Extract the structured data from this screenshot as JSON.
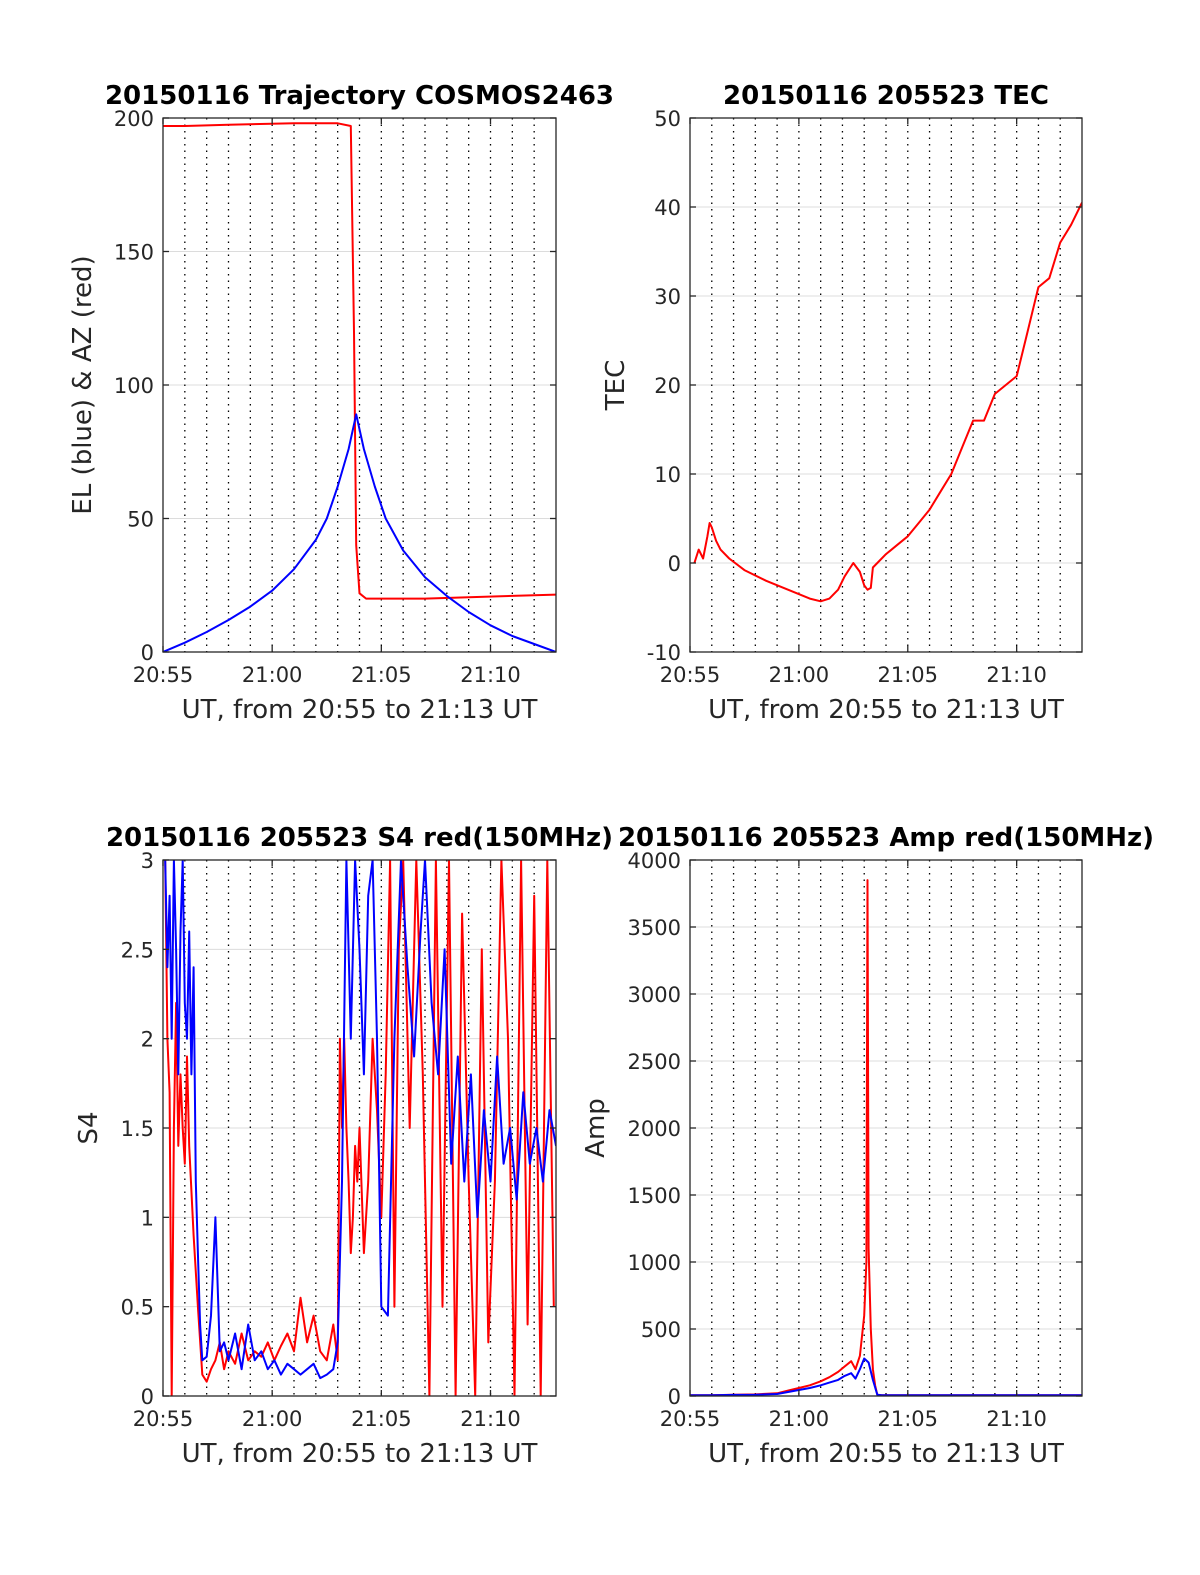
{
  "chart_data": [
    {
      "type": "line",
      "title": "20150116 Trajectory COSMOS2463",
      "xlabel": "UT, from 20:55 to 21:13 UT",
      "ylabel": "EL (blue) & AZ (red)",
      "xlim_minutes": [
        0,
        18
      ],
      "ylim": [
        0,
        200
      ],
      "xticks": [
        0,
        5,
        10,
        15
      ],
      "xtick_labels": [
        "20:55",
        "21:00",
        "21:05",
        "21:10"
      ],
      "yticks": [
        0,
        50,
        100,
        150,
        200
      ],
      "ytick_labels": [
        "0",
        "50",
        "100",
        "150",
        "200"
      ],
      "grid": "dotted vertical every minute, light horizontal at y ticks",
      "series": [
        {
          "color": "#ff0000",
          "x": [
            0,
            1,
            3,
            6,
            8,
            8.6,
            8.75,
            8.85,
            9.0,
            9.3,
            10,
            12,
            14,
            16,
            18
          ],
          "y": [
            197,
            197,
            197.5,
            198,
            198,
            197,
            120,
            40,
            22,
            20,
            20,
            20,
            20.5,
            21,
            21.5
          ]
        },
        {
          "color": "#0000ff",
          "x": [
            0,
            1,
            2,
            3,
            4,
            5,
            6,
            7,
            7.5,
            8,
            8.5,
            8.85,
            9.2,
            9.7,
            10.2,
            11,
            12,
            13,
            14,
            15,
            16,
            17,
            18
          ],
          "y": [
            0,
            3.5,
            7.5,
            12,
            17,
            23,
            31,
            42,
            50,
            62,
            76,
            89,
            76,
            62,
            50,
            38,
            28,
            21,
            15,
            10,
            6,
            3,
            0
          ]
        }
      ]
    },
    {
      "type": "line",
      "title": "20150116 205523 TEC",
      "xlabel": "UT, from 20:55 to 21:13 UT",
      "ylabel": "TEC",
      "xlim_minutes": [
        0,
        18
      ],
      "ylim": [
        -10,
        50
      ],
      "xticks": [
        0,
        5,
        10,
        15
      ],
      "xtick_labels": [
        "20:55",
        "21:00",
        "21:05",
        "21:10"
      ],
      "yticks": [
        -10,
        0,
        10,
        20,
        30,
        40,
        50
      ],
      "ytick_labels": [
        "-10",
        "0",
        "10",
        "20",
        "30",
        "40",
        "50"
      ],
      "grid": "dotted vertical every minute, light horizontal at y ticks",
      "series": [
        {
          "color": "#ff0000",
          "x": [
            0.2,
            0.4,
            0.6,
            0.8,
            0.9,
            1.0,
            1.2,
            1.4,
            1.8,
            2.5,
            3.5,
            4.5,
            5.5,
            6.0,
            6.4,
            6.8,
            7.1,
            7.5,
            7.8,
            8.0,
            8.15,
            8.3,
            8.4,
            8.6,
            9.0,
            9.5,
            10.0,
            10.5,
            11.0,
            11.5,
            12.0,
            12.5,
            13.0,
            13.5,
            14.0,
            14.5,
            15.0,
            15.5,
            16.0,
            16.5,
            17.0,
            17.5,
            18.0
          ],
          "y": [
            0,
            1.5,
            0.5,
            3,
            4.5,
            4,
            2.5,
            1.5,
            0.5,
            -0.8,
            -2,
            -3,
            -4,
            -4.3,
            -4,
            -3,
            -1.5,
            0,
            -1,
            -2.5,
            -3,
            -2.8,
            -0.5,
            0,
            1,
            2,
            3,
            4.5,
            6,
            8,
            10,
            13,
            16,
            16,
            19,
            20,
            21,
            26,
            31,
            32,
            36,
            38,
            40.5
          ]
        }
      ]
    },
    {
      "type": "line",
      "title": "20150116 205523 S4 red(150MHz)",
      "xlabel": "UT, from 20:55 to 21:13 UT",
      "ylabel": "S4",
      "xlim_minutes": [
        0,
        18
      ],
      "ylim": [
        0,
        3
      ],
      "xticks": [
        0,
        5,
        10,
        15
      ],
      "xtick_labels": [
        "20:55",
        "21:00",
        "21:05",
        "21:10"
      ],
      "yticks": [
        0,
        0.5,
        1,
        1.5,
        2,
        2.5,
        3
      ],
      "ytick_labels": [
        "0",
        "0.5",
        "1",
        "1.5",
        "2",
        "2.5",
        "3"
      ],
      "grid": "dotted vertical every minute, light horizontal at y ticks",
      "series": [
        {
          "color": "#ff0000",
          "x": [
            0.1,
            0.2,
            0.3,
            0.4,
            0.5,
            0.6,
            0.7,
            0.8,
            0.9,
            1.0,
            1.1,
            1.2,
            1.4,
            1.6,
            1.8,
            2.0,
            2.2,
            2.4,
            2.6,
            2.8,
            3.0,
            3.3,
            3.6,
            3.9,
            4.2,
            4.5,
            4.8,
            5.1,
            5.4,
            5.7,
            6.0,
            6.3,
            6.6,
            6.9,
            7.2,
            7.5,
            7.8,
            8.0,
            8.1,
            8.2,
            8.3,
            8.4,
            8.5,
            8.6,
            8.7,
            8.8,
            8.9,
            9.0,
            9.2,
            9.4,
            9.6,
            9.8,
            10.0,
            10.2,
            10.4,
            10.6,
            10.8,
            11.0,
            11.3,
            11.6,
            11.9,
            12.2,
            12.5,
            12.8,
            13.1,
            13.4,
            13.7,
            14.0,
            14.3,
            14.6,
            14.9,
            15.2,
            15.5,
            15.8,
            16.1,
            16.4,
            16.7,
            17.0,
            17.3,
            17.6,
            17.9
          ],
          "y": [
            3,
            2.0,
            1.7,
            0,
            1.5,
            2.2,
            1.4,
            1.8,
            1.5,
            1.3,
            1.9,
            1.4,
            0.9,
            0.5,
            0.12,
            0.08,
            0.15,
            0.2,
            0.3,
            0.15,
            0.25,
            0.18,
            0.35,
            0.2,
            0.25,
            0.22,
            0.3,
            0.2,
            0.28,
            0.35,
            0.25,
            0.55,
            0.3,
            0.45,
            0.25,
            0.2,
            0.4,
            0.2,
            2.0,
            1.5,
            2.0,
            1.5,
            1.2,
            0.8,
            1.0,
            1.4,
            1.2,
            1.5,
            0.8,
            1.2,
            2.0,
            1.6,
            1.0,
            1.8,
            3,
            0.5,
            2.5,
            3,
            1.5,
            3,
            1.8,
            0,
            3,
            0.5,
            3,
            0,
            2.7,
            1.2,
            0,
            2.5,
            0.3,
            1.2,
            3,
            2.0,
            0,
            3,
            0.4,
            2.8,
            0,
            3,
            0.5
          ]
        },
        {
          "color": "#0000ff",
          "x": [
            0.1,
            0.2,
            0.3,
            0.4,
            0.5,
            0.6,
            0.7,
            0.8,
            0.9,
            1.0,
            1.1,
            1.2,
            1.3,
            1.4,
            1.5,
            1.6,
            1.7,
            1.8,
            2.0,
            2.2,
            2.4,
            2.6,
            2.8,
            3.0,
            3.3,
            3.6,
            3.9,
            4.2,
            4.5,
            4.8,
            5.1,
            5.4,
            5.7,
            6.0,
            6.3,
            6.6,
            6.9,
            7.2,
            7.5,
            7.8,
            8.0,
            8.2,
            8.4,
            8.6,
            8.8,
            9.0,
            9.2,
            9.4,
            9.6,
            9.8,
            10.0,
            10.3,
            10.6,
            10.9,
            11.2,
            11.5,
            11.8,
            12.0,
            12.3,
            12.6,
            12.9,
            13.2,
            13.5,
            13.8,
            14.1,
            14.4,
            14.7,
            15.0,
            15.3,
            15.6,
            15.9,
            16.2,
            16.5,
            16.8,
            17.1,
            17.4,
            17.7,
            18.0
          ],
          "y": [
            3,
            2.4,
            2.8,
            2.0,
            3,
            2.5,
            1.8,
            2.6,
            3,
            2.2,
            2.0,
            2.6,
            1.8,
            2.4,
            1.2,
            0.8,
            0.4,
            0.2,
            0.22,
            0.45,
            1.0,
            0.25,
            0.3,
            0.2,
            0.35,
            0.15,
            0.4,
            0.2,
            0.25,
            0.15,
            0.2,
            0.12,
            0.18,
            0.15,
            0.12,
            0.15,
            0.18,
            0.1,
            0.12,
            0.15,
            0.3,
            1.2,
            3,
            2.0,
            3,
            2.5,
            1.8,
            2.8,
            3,
            2.0,
            0.5,
            0.45,
            2.0,
            3,
            2.4,
            1.9,
            2.6,
            3,
            2.2,
            1.8,
            2.5,
            1.3,
            1.9,
            1.2,
            1.8,
            1.0,
            1.6,
            1.2,
            1.9,
            1.3,
            1.5,
            1.1,
            1.7,
            1.3,
            1.5,
            1.2,
            1.6,
            1.4
          ]
        }
      ]
    },
    {
      "type": "line",
      "title": "20150116 205523 Amp red(150MHz)",
      "xlabel": "UT, from 20:55 to 21:13 UT",
      "ylabel": "Amp",
      "xlim_minutes": [
        0,
        18
      ],
      "ylim": [
        0,
        4000
      ],
      "xticks": [
        0,
        5,
        10,
        15
      ],
      "xtick_labels": [
        "20:55",
        "21:00",
        "21:05",
        "21:10"
      ],
      "yticks": [
        0,
        500,
        1000,
        1500,
        2000,
        2500,
        3000,
        3500,
        4000
      ],
      "ytick_labels": [
        "0",
        "500",
        "1000",
        "1500",
        "2000",
        "2500",
        "3000",
        "3500",
        "4000"
      ],
      "grid": "dotted vertical every minute, light horizontal at y ticks",
      "series": [
        {
          "color": "#ff0000",
          "x": [
            0,
            1,
            2,
            3,
            4,
            4.5,
            5.0,
            5.5,
            6.0,
            6.4,
            6.8,
            7.1,
            7.4,
            7.6,
            7.8,
            8.0,
            8.1,
            8.15,
            8.2,
            8.3,
            8.4,
            8.5,
            8.6,
            8.8,
            9,
            10,
            12,
            14,
            16,
            18
          ],
          "y": [
            5,
            5,
            10,
            12,
            20,
            40,
            60,
            80,
            110,
            140,
            180,
            220,
            260,
            200,
            300,
            600,
            1000,
            3850,
            1100,
            500,
            200,
            80,
            10,
            5,
            5,
            5,
            5,
            5,
            5,
            5
          ]
        },
        {
          "color": "#0000ff",
          "x": [
            0,
            1,
            2,
            3,
            4,
            4.5,
            5.0,
            5.5,
            6.0,
            6.4,
            6.8,
            7.1,
            7.4,
            7.6,
            7.8,
            8.0,
            8.2,
            8.4,
            8.6,
            8.8,
            9,
            10,
            12,
            14,
            16,
            18
          ],
          "y": [
            5,
            5,
            8,
            10,
            15,
            30,
            45,
            60,
            80,
            100,
            120,
            150,
            170,
            130,
            200,
            280,
            250,
            120,
            10,
            5,
            5,
            5,
            5,
            5,
            5,
            5
          ]
        }
      ]
    }
  ]
}
